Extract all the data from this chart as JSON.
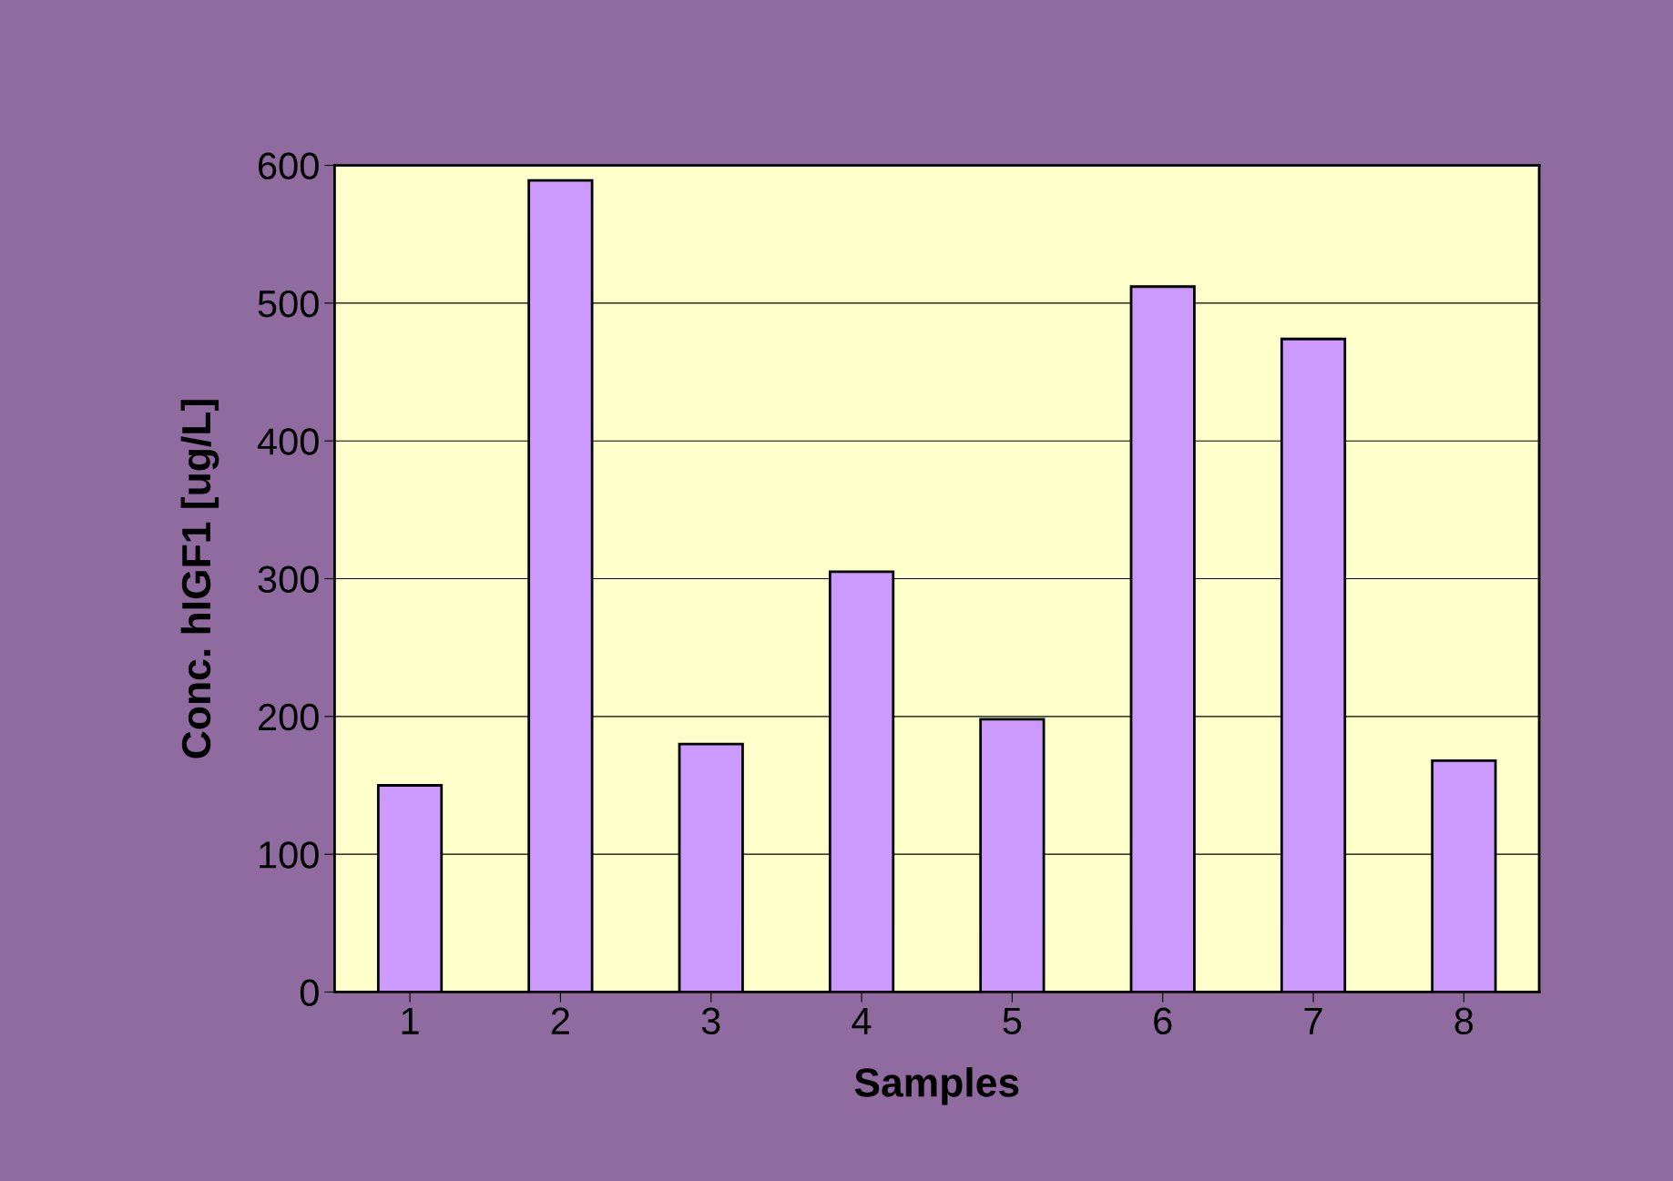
{
  "chart_data": {
    "type": "bar",
    "xlabel": "Samples",
    "ylabel": "Conc. hIGF1 [ug/L]",
    "categories": [
      "1",
      "2",
      "3",
      "4",
      "5",
      "6",
      "7",
      "8"
    ],
    "values": [
      150,
      589,
      180,
      305,
      198,
      512,
      474,
      168
    ],
    "color": "#cc99ff",
    "ylim": [
      0,
      600
    ],
    "yticks": [
      0,
      100,
      200,
      300,
      400,
      500,
      600
    ],
    "grid": "y"
  }
}
